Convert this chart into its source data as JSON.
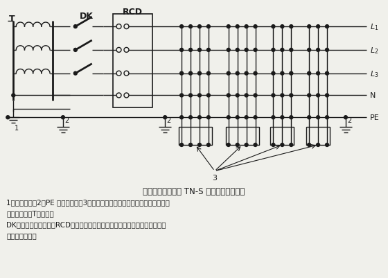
{
  "title": "专用变压器供电时 TN-S 接零保护系统示意",
  "caption_lines": [
    "1－工作接地；2－PE 线重复接地；3－电气设备金属外壳（正常不带电的外露可",
    "导电部分）；T－变压器",
    "DK－总电源隔离开关；RCD－总漏电保护器（兼有短路、过载、漏电保护功能",
    "的漏电断路器）"
  ],
  "bg_color": "#f0f0eb",
  "line_color": "#1a1a1a"
}
